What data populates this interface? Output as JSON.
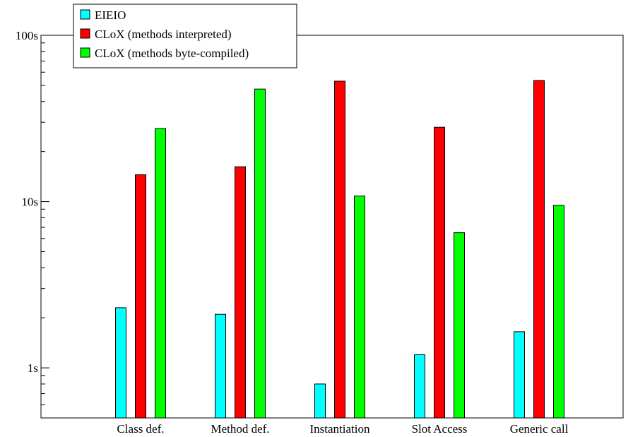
{
  "chart_data": {
    "type": "bar",
    "scale": "log",
    "categories": [
      "Class def.",
      "Method def.",
      "Instantiation",
      "Slot Access",
      "Generic call"
    ],
    "series": [
      {
        "name": "EIEIO",
        "color": "#00ffff",
        "values": [
          2.3,
          2.1,
          0.8,
          1.2,
          1.65
        ]
      },
      {
        "name": "CLoX (methods interpreted)",
        "color": "#ff0000",
        "values": [
          14.5,
          16.2,
          53,
          28,
          53.5
        ]
      },
      {
        "name": "CLoX (methods byte-compiled)",
        "color": "#00ff00",
        "values": [
          27.5,
          47.5,
          10.8,
          6.5,
          9.5
        ]
      }
    ],
    "y_ticks": [
      {
        "value": 1,
        "label": "1s"
      },
      {
        "value": 10,
        "label": "10s"
      },
      {
        "value": 100,
        "label": "100s"
      }
    ],
    "ylim": [
      0.5,
      100
    ],
    "legend_position": "top-left",
    "grid": false,
    "title": "",
    "xlabel": "",
    "ylabel": ""
  }
}
